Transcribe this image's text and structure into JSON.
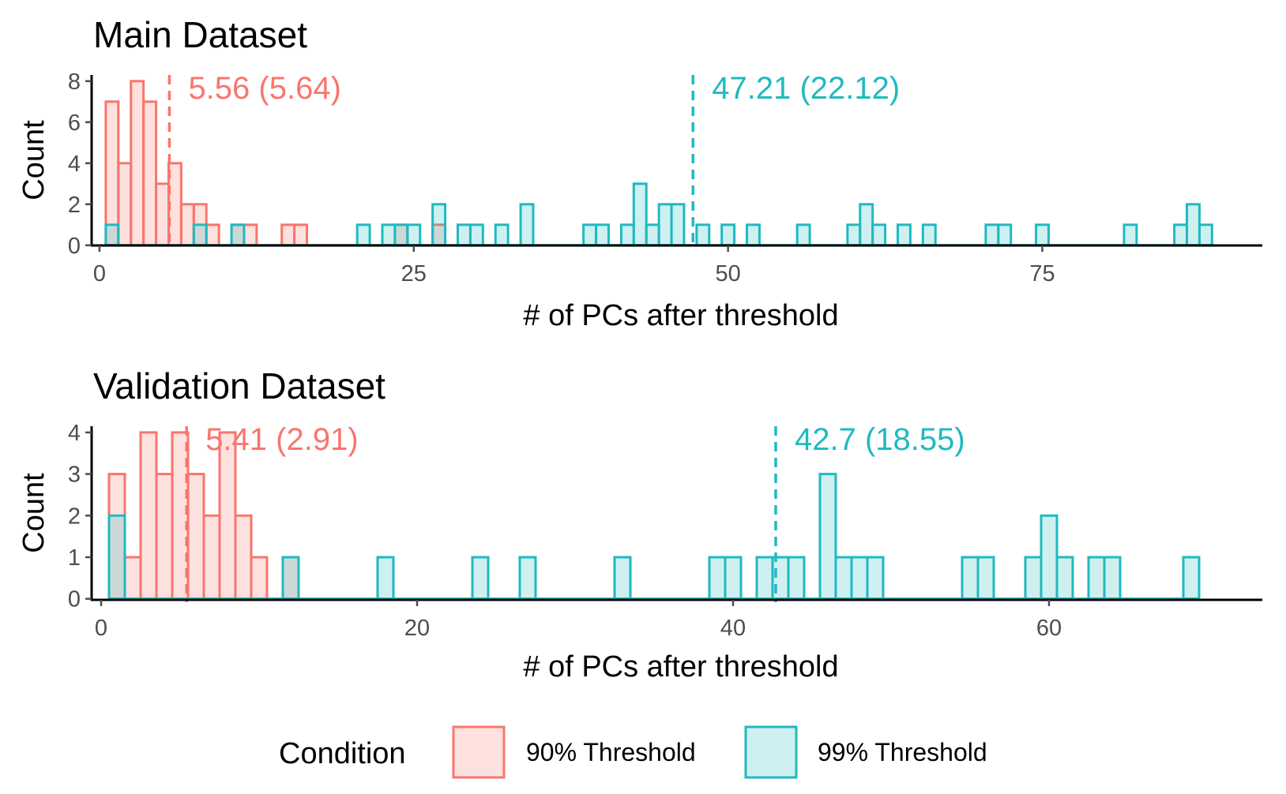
{
  "colors": {
    "series_a_line": "#F8766D",
    "series_a_fill": "#F8766D",
    "series_b_line": "#1FBABF",
    "series_b_fill": "#1FBABF",
    "axis": "#000000",
    "tick_text": "#4d4d4d"
  },
  "legend": {
    "title": "Condition",
    "position": "bottom",
    "items": [
      {
        "label": "90% Threshold"
      },
      {
        "label": "99% Threshold"
      }
    ]
  },
  "chart_data": [
    {
      "type": "bar",
      "title": "Main Dataset",
      "xlabel": "# of PCs after threshold",
      "ylabel": "Count",
      "xlim": [
        -0.5,
        92.5
      ],
      "ylim": [
        -0.2,
        8.3
      ],
      "xticks": [
        0,
        25,
        50,
        75
      ],
      "yticks": [
        0,
        2,
        4,
        6,
        8
      ],
      "grid": false,
      "series": [
        {
          "name": "90% Threshold",
          "bins": [
            {
              "x": 1,
              "count": 7
            },
            {
              "x": 2,
              "count": 4
            },
            {
              "x": 3,
              "count": 8
            },
            {
              "x": 4,
              "count": 7
            },
            {
              "x": 5,
              "count": 3
            },
            {
              "x": 6,
              "count": 4
            },
            {
              "x": 7,
              "count": 2
            },
            {
              "x": 8,
              "count": 2
            },
            {
              "x": 9,
              "count": 1
            },
            {
              "x": 11,
              "count": 1
            },
            {
              "x": 12,
              "count": 1
            },
            {
              "x": 15,
              "count": 1
            },
            {
              "x": 16,
              "count": 1
            },
            {
              "x": 24,
              "count": 1
            },
            {
              "x": 27,
              "count": 1
            }
          ],
          "mean_line": 5.56,
          "mean_label": "5.56 (5.64)"
        },
        {
          "name": "99% Threshold",
          "bins": [
            {
              "x": 1,
              "count": 1
            },
            {
              "x": 8,
              "count": 1
            },
            {
              "x": 11,
              "count": 1
            },
            {
              "x": 21,
              "count": 1
            },
            {
              "x": 23,
              "count": 1
            },
            {
              "x": 24,
              "count": 1
            },
            {
              "x": 25,
              "count": 1
            },
            {
              "x": 27,
              "count": 2
            },
            {
              "x": 29,
              "count": 1
            },
            {
              "x": 30,
              "count": 1
            },
            {
              "x": 32,
              "count": 1
            },
            {
              "x": 34,
              "count": 2
            },
            {
              "x": 39,
              "count": 1
            },
            {
              "x": 40,
              "count": 1
            },
            {
              "x": 42,
              "count": 1
            },
            {
              "x": 43,
              "count": 3
            },
            {
              "x": 44,
              "count": 1
            },
            {
              "x": 45,
              "count": 2
            },
            {
              "x": 46,
              "count": 2
            },
            {
              "x": 48,
              "count": 1
            },
            {
              "x": 50,
              "count": 1
            },
            {
              "x": 52,
              "count": 1
            },
            {
              "x": 56,
              "count": 1
            },
            {
              "x": 60,
              "count": 1
            },
            {
              "x": 61,
              "count": 2
            },
            {
              "x": 62,
              "count": 1
            },
            {
              "x": 64,
              "count": 1
            },
            {
              "x": 66,
              "count": 1
            },
            {
              "x": 71,
              "count": 1
            },
            {
              "x": 72,
              "count": 1
            },
            {
              "x": 75,
              "count": 1
            },
            {
              "x": 82,
              "count": 1
            },
            {
              "x": 86,
              "count": 1
            },
            {
              "x": 87,
              "count": 2
            },
            {
              "x": 88,
              "count": 1
            }
          ],
          "mean_line": 47.21,
          "mean_label": "47.21 (22.12)"
        }
      ]
    },
    {
      "type": "bar",
      "title": "Validation Dataset",
      "xlabel": "# of PCs after threshold",
      "ylabel": "Count",
      "xlim": [
        -0.5,
        73.5
      ],
      "ylim": [
        -0.12,
        4.15
      ],
      "xticks": [
        0,
        20,
        40,
        60
      ],
      "yticks": [
        0,
        1,
        2,
        3,
        4
      ],
      "grid": false,
      "series": [
        {
          "name": "90% Threshold",
          "bins": [
            {
              "x": 1,
              "count": 3
            },
            {
              "x": 2,
              "count": 1
            },
            {
              "x": 3,
              "count": 4
            },
            {
              "x": 4,
              "count": 3
            },
            {
              "x": 5,
              "count": 4
            },
            {
              "x": 6,
              "count": 3
            },
            {
              "x": 7,
              "count": 2
            },
            {
              "x": 8,
              "count": 4
            },
            {
              "x": 9,
              "count": 2
            },
            {
              "x": 10,
              "count": 1
            },
            {
              "x": 12,
              "count": 1
            }
          ],
          "mean_line": 5.41,
          "mean_label": "5.41 (2.91)"
        },
        {
          "name": "99% Threshold",
          "bins": [
            {
              "x": 1,
              "count": 2
            },
            {
              "x": 12,
              "count": 1
            },
            {
              "x": 18,
              "count": 1
            },
            {
              "x": 24,
              "count": 1
            },
            {
              "x": 27,
              "count": 1
            },
            {
              "x": 33,
              "count": 1
            },
            {
              "x": 39,
              "count": 1
            },
            {
              "x": 40,
              "count": 1
            },
            {
              "x": 42,
              "count": 1
            },
            {
              "x": 43,
              "count": 1
            },
            {
              "x": 44,
              "count": 1
            },
            {
              "x": 46,
              "count": 3
            },
            {
              "x": 47,
              "count": 1
            },
            {
              "x": 48,
              "count": 1
            },
            {
              "x": 49,
              "count": 1
            },
            {
              "x": 55,
              "count": 1
            },
            {
              "x": 56,
              "count": 1
            },
            {
              "x": 59,
              "count": 1
            },
            {
              "x": 60,
              "count": 2
            },
            {
              "x": 61,
              "count": 1
            },
            {
              "x": 63,
              "count": 1
            },
            {
              "x": 64,
              "count": 1
            },
            {
              "x": 69,
              "count": 1
            }
          ],
          "mean_line": 42.7,
          "mean_label": "42.7 (18.55)"
        }
      ]
    }
  ]
}
